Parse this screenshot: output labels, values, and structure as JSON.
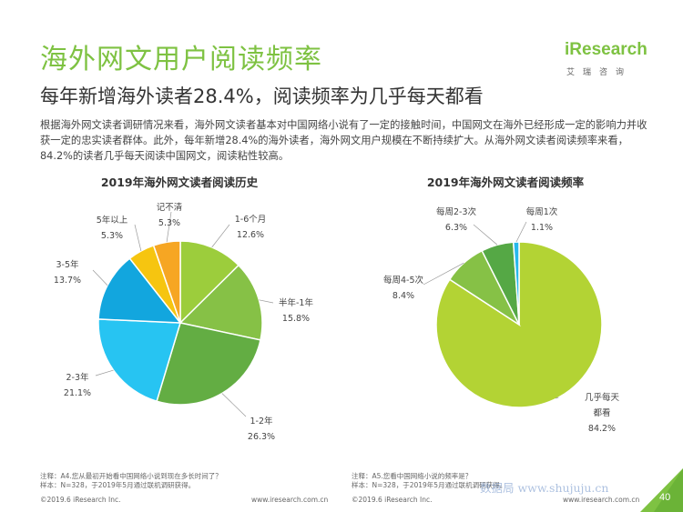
{
  "header": {
    "title": "海外网文用户阅读频率",
    "subtitle": "每年新增海外读者28.4%，阅读频率为几乎每天都看",
    "body": "根据海外网文读者调研情况来看，海外网文读者基本对中国网络小说有了一定的接触时间，中国网文在海外已经形成一定的影响力并收获一定的忠实读者群体。此外，每年新增28.4%的海外读者，海外网文用户规模在不断持续扩大。从海外网文读者阅读频率来看，84.2%的读者几乎每天阅读中国网文，阅读粘性较高。"
  },
  "logo": {
    "name": "iResearch",
    "cn": "艾瑞咨询"
  },
  "chart_data": [
    {
      "type": "pie",
      "title": "2019年海外网文读者阅读历史",
      "categories": [
        "1-6个月",
        "半年-1年",
        "1-2年",
        "2-3年",
        "3-5年",
        "5年以上",
        "记不清"
      ],
      "values": [
        12.6,
        15.8,
        26.3,
        21.1,
        13.7,
        5.3,
        5.3
      ],
      "value_labels": [
        "12.6%",
        "15.8%",
        "26.3%",
        "21.1%",
        "13.7%",
        "5.3%",
        "5.3%"
      ],
      "colors": [
        "#9ccd3c",
        "#86c146",
        "#63ad43",
        "#27c4f2",
        "#12a6de",
        "#f6c510",
        "#f6a623"
      ]
    },
    {
      "type": "pie",
      "title": "2019年海外网文读者阅读频率",
      "categories": [
        "几乎每天都看",
        "每周4-5次",
        "每周2-3次",
        "每周1次"
      ],
      "label_lines": [
        [
          "几乎每天",
          "都看"
        ],
        [
          "每周4-5次"
        ],
        [
          "每周2-3次"
        ],
        [
          "每周1次"
        ]
      ],
      "values": [
        84.2,
        8.4,
        6.3,
        1.1
      ],
      "value_labels": [
        "84.2%",
        "8.4%",
        "6.3%",
        "1.1%"
      ],
      "colors": [
        "#b3d334",
        "#86c146",
        "#55a845",
        "#27b8ec"
      ]
    }
  ],
  "notes": {
    "left": [
      "注释：A4.您从最初开始看中国网络小说到现在多长时间了？",
      "样本：N=328，于2019年5月通过联机调研获得。"
    ],
    "right": [
      "注释：A5.您看中国网络小说的频率是？",
      "样本：N=328，于2019年5月通过联机调研获得。"
    ]
  },
  "footer": {
    "copyright_left": "©2019.6 iResearch Inc.",
    "url_left": "www.iresearch.com.cn",
    "copyright_right": "©2019.6 iResearch Inc.",
    "url_right": "www.iresearch.com.cn",
    "page": "40"
  },
  "watermark": "数据局 www.shujuju.cn"
}
